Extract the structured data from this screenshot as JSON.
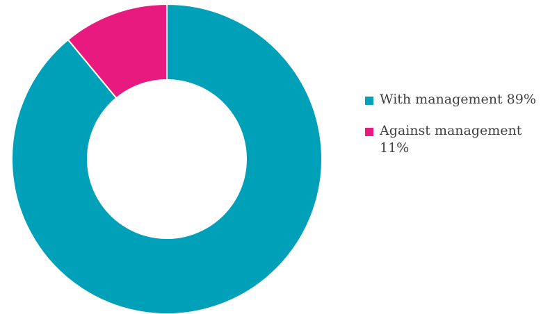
{
  "chart_data": {
    "type": "pie",
    "variant": "donut",
    "title": "",
    "slices": [
      {
        "label": "With management",
        "value": 89,
        "value_label": "89%",
        "color": "#00A0B9"
      },
      {
        "label": "Against management",
        "value": 11,
        "value_label": "11%",
        "color": "#E8197F"
      }
    ],
    "start_angle_deg": 0,
    "direction": "clockwise",
    "legend": {
      "placement": "right",
      "items": [
        {
          "text": "With management 89%",
          "color": "#00A0B9"
        },
        {
          "text": "Against management 11%",
          "color": "#E8197F"
        }
      ]
    }
  }
}
